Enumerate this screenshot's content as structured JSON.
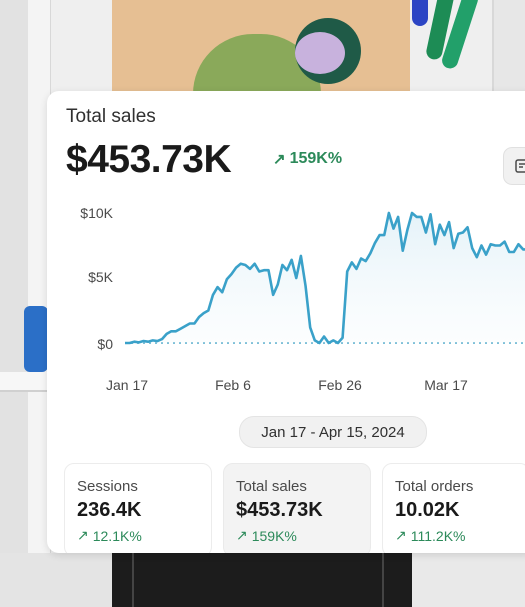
{
  "card": {
    "title": "Total sales",
    "value": "$453.73K",
    "change": "159K%",
    "change_color": "#2c8a5a"
  },
  "date_range": "Jan 17 - Apr 15, 2024",
  "metrics": [
    {
      "label": "Sessions",
      "value": "236.4K",
      "change": "12.1K%"
    },
    {
      "label": "Total sales",
      "value": "$453.73K",
      "change": "159K%"
    },
    {
      "label": "Total orders",
      "value": "10.02K",
      "change": "111.2K%"
    }
  ],
  "chart_data": {
    "type": "line",
    "x_labels": [
      "Jan 17",
      "Feb 6",
      "Feb 26",
      "Mar 17"
    ],
    "y_ticks": [
      "$10K",
      "$5K",
      "$0"
    ],
    "ylim": [
      0,
      10000
    ],
    "line_color": "#3aa1c9",
    "series": [
      {
        "values": [
          0,
          0,
          100,
          50,
          150,
          100,
          200,
          150,
          300,
          700,
          900,
          900,
          1100,
          1300,
          1500,
          1500,
          2000,
          2300,
          2500,
          3700,
          4300,
          3900,
          4900,
          5300,
          5800,
          6100,
          6000,
          5700,
          6100,
          5500,
          5600,
          5600,
          3700,
          4500,
          6000,
          5600,
          6400,
          5000,
          6700,
          4400,
          1200,
          200,
          0,
          500,
          0,
          200,
          0,
          400,
          5500,
          6200,
          5700,
          6500,
          6300,
          6900,
          7700,
          8300,
          8300,
          10000,
          8800,
          9700,
          7100,
          8700,
          10000,
          9700,
          9700,
          8500,
          9900,
          7600,
          9100,
          8300,
          9300,
          7300,
          8400,
          8500,
          8900,
          7300,
          6600,
          7500,
          6800,
          7600,
          7500,
          7500,
          7800,
          7000,
          7000,
          7600,
          7200,
          7200,
          6800,
          7100
        ]
      },
      {
        "values": [
          0,
          0,
          0,
          0,
          0,
          0,
          0,
          0,
          0,
          0,
          0,
          0,
          0,
          0,
          0,
          0,
          0,
          0,
          0,
          0,
          0,
          0,
          0,
          0,
          0,
          0,
          0,
          0,
          0,
          0,
          0,
          0,
          0,
          0,
          0,
          0,
          0,
          0,
          0,
          0,
          0,
          0,
          0,
          0,
          0,
          0,
          0,
          0,
          0,
          0,
          0,
          0,
          0,
          0,
          0,
          0,
          0,
          0,
          0,
          0,
          0,
          0,
          0,
          0,
          0,
          0,
          0,
          0,
          0,
          0,
          0,
          0,
          0,
          0,
          0,
          0,
          0,
          0,
          0,
          0,
          0,
          0,
          0,
          0,
          0,
          0,
          0,
          0,
          0,
          0
        ]
      }
    ]
  }
}
